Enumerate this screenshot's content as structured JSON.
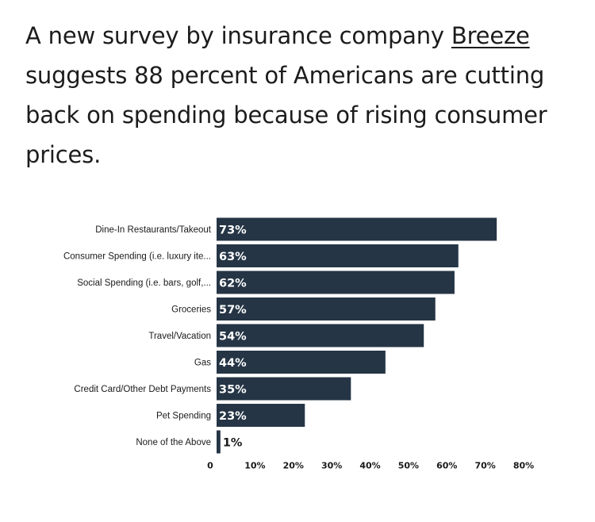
{
  "intro": {
    "before": "A new survey by insurance company ",
    "link": "Breeze",
    "after": " suggests 88 percent of Americans are cutting back on spending because of rising consumer prices."
  },
  "chart_data": {
    "type": "bar",
    "orientation": "horizontal",
    "categories": [
      "Dine-In Restaurants/Takeout",
      "Consumer Spending (i.e. luxury ite...",
      "Social Spending (i.e. bars, golf,...",
      "Groceries",
      "Travel/Vacation",
      "Gas",
      "Credit Card/Other Debt Payments",
      "Pet Spending",
      "None of the Above"
    ],
    "values": [
      73,
      63,
      62,
      57,
      54,
      44,
      35,
      23,
      1
    ],
    "value_labels": [
      "73%",
      "63%",
      "62%",
      "57%",
      "54%",
      "44%",
      "35%",
      "23%",
      "1%"
    ],
    "x_ticks": [
      0,
      10,
      20,
      30,
      40,
      50,
      60,
      70,
      80
    ],
    "x_tick_labels": [
      "0",
      "10%",
      "20%",
      "30%",
      "40%",
      "50%",
      "60%",
      "70%",
      "80%"
    ],
    "xlim": [
      0,
      80
    ],
    "bar_color": "#253545",
    "grid": false
  }
}
